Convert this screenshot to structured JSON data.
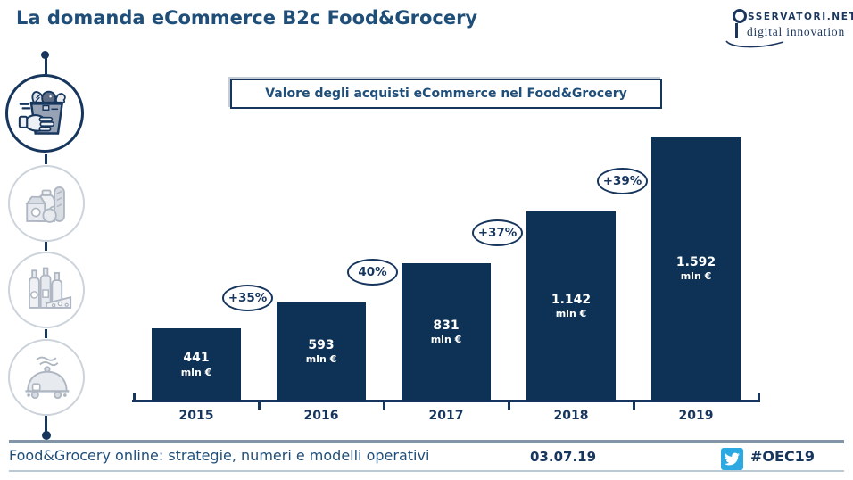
{
  "title": "La domanda eCommerce B2c Food&Grocery",
  "logo": {
    "name": "SSERVATORI.NET",
    "tagline": "digital innovation",
    "icon": "magnifier-o-icon",
    "color": "#1B365C"
  },
  "sidebar": {
    "items": [
      {
        "icon": "grocery-bag-icon",
        "active": true
      },
      {
        "icon": "grocery-products-icon",
        "active": false
      },
      {
        "icon": "wine-bottles-cheese-icon",
        "active": false
      },
      {
        "icon": "food-delivery-cloche-icon",
        "active": false
      }
    ]
  },
  "chart_data": {
    "type": "bar",
    "title": "Valore degli acquisti eCommerce nel Food&Grocery",
    "categories": [
      "2015",
      "2016",
      "2017",
      "2018",
      "2019"
    ],
    "values": [
      441,
      593,
      831,
      1142,
      1592
    ],
    "value_labels": [
      "441",
      "593",
      "831",
      "1.142",
      "1.592"
    ],
    "unit_label": "mln €",
    "growth_labels": [
      "+35%",
      "40%",
      "+37%",
      "+39%"
    ],
    "xlabel": "",
    "ylabel": "",
    "ylim": [
      0,
      1700
    ],
    "grid": false,
    "legend": false,
    "bar_color": "#0E3255",
    "axis_color": "#17365D",
    "value_label_color": "#FFFFFF",
    "badge_color": "#17365D"
  },
  "footer": {
    "title": "Food&Grocery online: strategie, numeri e modelli operativi",
    "date": "03.07.19",
    "hashtag": "#OEC19",
    "twitter_color": "#2CA9E1"
  }
}
